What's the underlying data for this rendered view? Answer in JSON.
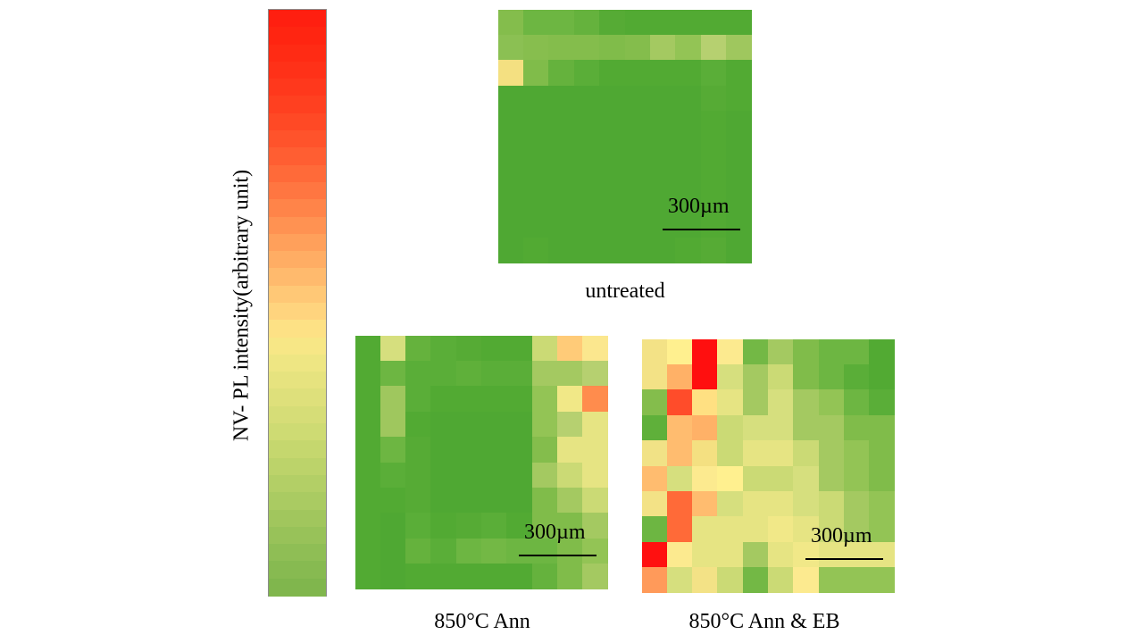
{
  "chart_data": {
    "type": "heatmap",
    "colorbar": {
      "label": "NV- PL intensity(arbitrary unit)",
      "colors_top_to_bottom": [
        "#ff1f10",
        "#ff2511",
        "#ff2b14",
        "#ff3118",
        "#ff381c",
        "#ff4020",
        "#ff4925",
        "#ff532b",
        "#ff5e32",
        "#ff6a39",
        "#ff7641",
        "#ff8449",
        "#ff9252",
        "#ffa05b",
        "#ffad64",
        "#ffba6d",
        "#ffc876",
        "#ffd47e",
        "#fde185",
        "#f7e786",
        "#eee683",
        "#e6e37f",
        "#dee07b",
        "#d6dd77",
        "#cedb73",
        "#c5d76e",
        "#bcd36a",
        "#b3cf66",
        "#aacb62",
        "#a1c65d",
        "#98c259",
        "#8fbe55",
        "#87ba51",
        "#80b64d"
      ]
    },
    "maps": [
      {
        "caption": "untreated",
        "scale_bar": "300µm",
        "rows": 10,
        "cols": 10,
        "cells": [
          [
            "#84bd4c",
            "#6db642",
            "#6db642",
            "#65b23d",
            "#56ab35",
            "#52aa33",
            "#52aa33",
            "#52aa33",
            "#52aa33",
            "#52aa33"
          ],
          [
            "#8bc053",
            "#87be4e",
            "#84bd4c",
            "#84bd4c",
            "#80bc4a",
            "#84bd4c",
            "#a4c961",
            "#93c455",
            "#b6d070",
            "#9fc75e"
          ],
          [
            "#f4e081",
            "#80bc4a",
            "#65b23d",
            "#5aae38",
            "#52aa33",
            "#52aa33",
            "#52aa33",
            "#52aa33",
            "#5aae38",
            "#52aa33"
          ],
          [
            "#4fa833",
            "#4fa833",
            "#4fa833",
            "#4fa833",
            "#4fa833",
            "#4fa833",
            "#4fa833",
            "#4fa833",
            "#56ab35",
            "#52aa33"
          ],
          [
            "#4fa833",
            "#4fa833",
            "#4fa833",
            "#4fa833",
            "#4fa833",
            "#4fa833",
            "#4fa833",
            "#4fa833",
            "#52aa33",
            "#4fa833"
          ],
          [
            "#4fa833",
            "#4fa833",
            "#4fa833",
            "#4fa833",
            "#4fa833",
            "#4fa833",
            "#4fa833",
            "#4fa833",
            "#52aa33",
            "#4fa833"
          ],
          [
            "#4fa833",
            "#4fa833",
            "#4fa833",
            "#4fa833",
            "#4fa833",
            "#4fa833",
            "#4fa833",
            "#4fa833",
            "#52aa33",
            "#4fa833"
          ],
          [
            "#4fa833",
            "#4fa833",
            "#4fa833",
            "#4fa833",
            "#4fa833",
            "#4fa833",
            "#4fa833",
            "#4fa833",
            "#52aa33",
            "#4fa833"
          ],
          [
            "#4fa833",
            "#4fa833",
            "#4fa833",
            "#4fa833",
            "#4fa833",
            "#4fa833",
            "#4fa833",
            "#4fa833",
            "#52aa33",
            "#4fa833"
          ],
          [
            "#4fa833",
            "#52aa33",
            "#4fa833",
            "#4fa833",
            "#4fa833",
            "#4fa833",
            "#4fa833",
            "#52aa33",
            "#56ab35",
            "#4fa833"
          ]
        ]
      },
      {
        "caption": "850°C Ann",
        "scale_bar": "300µm",
        "rows": 10,
        "cols": 10,
        "cells": [
          [
            "#52aa33",
            "#d6df7e",
            "#65b23d",
            "#5aae38",
            "#56ab35",
            "#52aa33",
            "#52aa33",
            "#cbda75",
            "#ffcb78",
            "#fbe78e"
          ],
          [
            "#52aa33",
            "#6db642",
            "#5aae38",
            "#5aae38",
            "#5fb03a",
            "#5aae38",
            "#5aae38",
            "#a4c961",
            "#a4c961",
            "#b6d070"
          ],
          [
            "#52aa33",
            "#9fc75e",
            "#5aae38",
            "#52aa33",
            "#52aa33",
            "#52aa33",
            "#52aa33",
            "#93c455",
            "#f1e887",
            "#ff8c4d"
          ],
          [
            "#52aa33",
            "#9fc75e",
            "#52aa33",
            "#4fa833",
            "#4fa833",
            "#4fa833",
            "#4fa833",
            "#93c455",
            "#b6d070",
            "#e6e483"
          ],
          [
            "#52aa33",
            "#6db642",
            "#56ab35",
            "#4fa833",
            "#4fa833",
            "#4fa833",
            "#4fa833",
            "#84bd4c",
            "#e6e483",
            "#e6e483"
          ],
          [
            "#52aa33",
            "#5aae38",
            "#56ab35",
            "#4fa833",
            "#4fa833",
            "#4fa833",
            "#4fa833",
            "#a4c961",
            "#cbda75",
            "#e6e483"
          ],
          [
            "#52aa33",
            "#52aa33",
            "#56ab35",
            "#4fa833",
            "#4fa833",
            "#4fa833",
            "#4fa833",
            "#80bc4a",
            "#a4c961",
            "#cbda75"
          ],
          [
            "#52aa33",
            "#4fa833",
            "#5aae38",
            "#52aa33",
            "#56ab35",
            "#5aae38",
            "#52aa33",
            "#80bc4a",
            "#80bc4a",
            "#a4c961"
          ],
          [
            "#52aa33",
            "#4fa833",
            "#65b23d",
            "#5aae38",
            "#6db642",
            "#73b845",
            "#6db642",
            "#6db642",
            "#80bc4a",
            "#93c455"
          ],
          [
            "#52aa33",
            "#4fa833",
            "#52aa33",
            "#52aa33",
            "#52aa33",
            "#52aa33",
            "#52aa33",
            "#65b23d",
            "#80bc4a",
            "#a4c961"
          ]
        ]
      },
      {
        "caption": "850°C Ann & EB",
        "scale_bar": "300µm",
        "rows": 10,
        "cols": 10,
        "cells": [
          [
            "#f3e286",
            "#fff08f",
            "#ff0f0f",
            "#fcea8f",
            "#73b845",
            "#a4c961",
            "#80bc4a",
            "#6db642",
            "#6db642",
            "#52aa33"
          ],
          [
            "#f3e286",
            "#ffb167",
            "#ff0f0f",
            "#d6df7e",
            "#a4c961",
            "#cbda75",
            "#80bc4a",
            "#6db642",
            "#5aae38",
            "#52aa33"
          ],
          [
            "#84bd4c",
            "#ff4c2a",
            "#ffe082",
            "#e6e483",
            "#a4c961",
            "#d6df7e",
            "#a4c961",
            "#93c455",
            "#6db642",
            "#5aae38"
          ],
          [
            "#5fb03a",
            "#ffbc6f",
            "#ffb167",
            "#cbda75",
            "#d6df7e",
            "#d6df7e",
            "#a4c961",
            "#a4c961",
            "#80bc4a",
            "#80bc4a"
          ],
          [
            "#f1e286",
            "#ffbc6f",
            "#f4e081",
            "#cbda75",
            "#e6e483",
            "#e6e483",
            "#cbda75",
            "#a4c961",
            "#93c455",
            "#80bc4a"
          ],
          [
            "#ffbc6f",
            "#d6df7e",
            "#fcea8f",
            "#fff08f",
            "#cbda75",
            "#cbda75",
            "#d6df7e",
            "#a4c961",
            "#93c455",
            "#80bc4a"
          ],
          [
            "#f3e286",
            "#ff6a38",
            "#ffbc6f",
            "#d6df7e",
            "#e6e483",
            "#e6e483",
            "#d6df7e",
            "#cbda75",
            "#a4c961",
            "#93c455"
          ],
          [
            "#6db642",
            "#ff6a38",
            "#e6e483",
            "#e6e483",
            "#e6e483",
            "#f1e888",
            "#e6e483",
            "#cbda75",
            "#a4c961",
            "#93c455"
          ],
          [
            "#ff1010",
            "#fcea8f",
            "#e6e483",
            "#e6e483",
            "#a4c961",
            "#e6e483",
            "#f1e888",
            "#e6e483",
            "#e6e483",
            "#e6e483"
          ],
          [
            "#ff9a5a",
            "#d6df7e",
            "#f3e286",
            "#cbda75",
            "#73b845",
            "#cbda75",
            "#fcea8f",
            "#93c455",
            "#93c455",
            "#93c455"
          ]
        ]
      }
    ]
  }
}
